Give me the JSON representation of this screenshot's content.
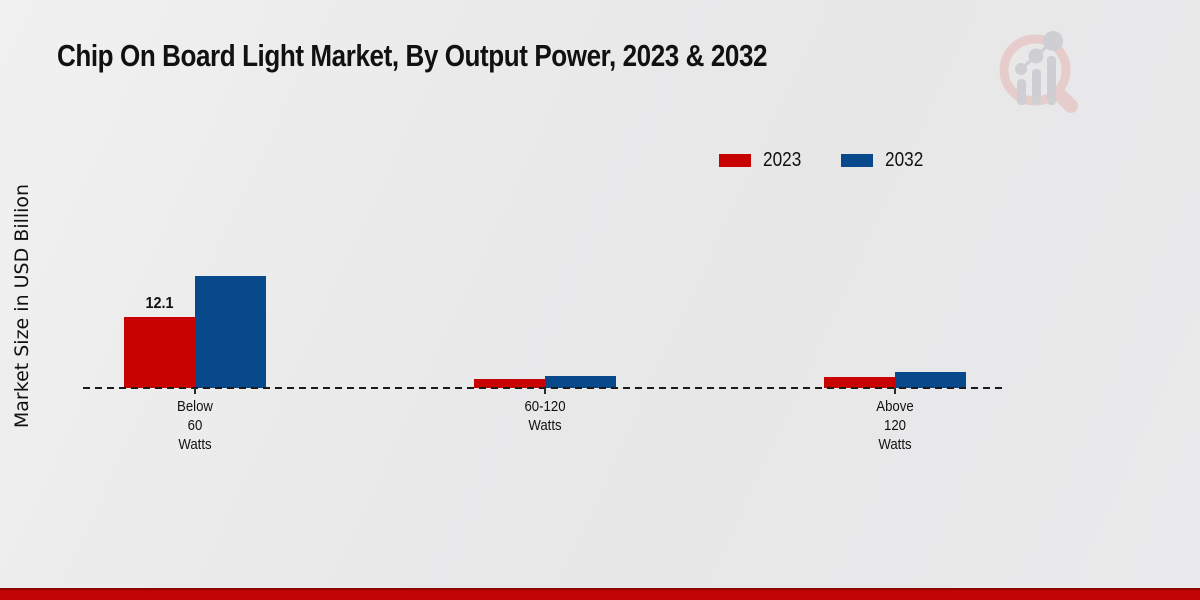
{
  "title": "Chip On Board Light Market, By Output Power, 2023 & 2032",
  "y_axis_label": "Market Size in USD Billion",
  "legend": [
    {
      "label": "2023",
      "color": "#c80101"
    },
    {
      "label": "2032",
      "color": "#07498a"
    }
  ],
  "colors": {
    "bar_2023": "#c80101",
    "bar_2032": "#07498a",
    "baseline": "#1b1b1b",
    "footer_band": "#c00404",
    "text": "#111111",
    "watermark_pink": "#e7cccc",
    "watermark_gray": "#cfcfd3"
  },
  "chart_data": {
    "type": "bar",
    "categories": [
      [
        "Below",
        "60",
        "Watts"
      ],
      [
        "60-120",
        "Watts"
      ],
      [
        "Above",
        "120",
        "Watts"
      ]
    ],
    "series": [
      {
        "name": "2023",
        "color": "#c80101",
        "values": [
          12.1,
          1.5,
          1.8
        ]
      },
      {
        "name": "2032",
        "color": "#07498a",
        "values": [
          19.1,
          2.1,
          2.75
        ]
      }
    ],
    "annotations": [
      {
        "series_index": 0,
        "category_index": 0,
        "text": "12.1"
      }
    ],
    "title": "Chip On Board Light Market, By Output Power, 2023 & 2032",
    "xlabel": "",
    "ylabel": "Market Size in USD Billion",
    "ylim": [
      0,
      20
    ],
    "grid": false,
    "legend_position": "top-right",
    "baseline_style": "dashed",
    "y_axis_ticks_visible": false
  },
  "watermark": {
    "name": "market-research-future-logo"
  }
}
